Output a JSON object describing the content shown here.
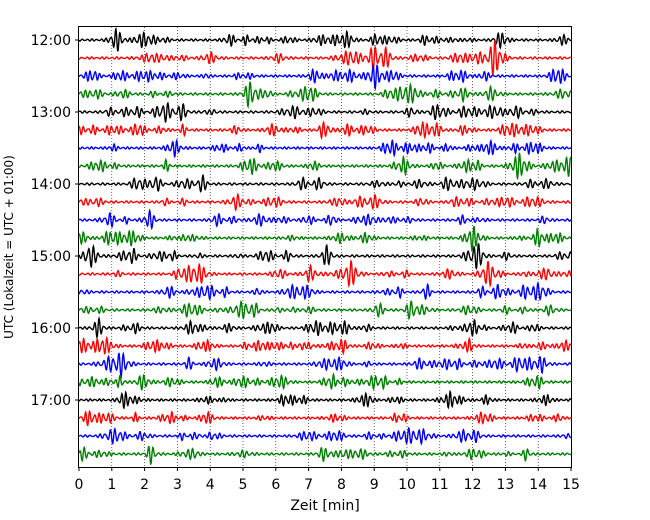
{
  "chart_data": {
    "type": "line",
    "title": "",
    "xlabel": "Zeit  [min]",
    "ylabel": "UTC (Lokalzeit = UTC + 01:00)",
    "xlim": [
      0,
      15
    ],
    "x_ticks": [
      "0",
      "1",
      "2",
      "3",
      "4",
      "5",
      "6",
      "7",
      "8",
      "9",
      "10",
      "11",
      "12",
      "13",
      "14",
      "15"
    ],
    "y_ticks": [
      "12:00",
      "13:00",
      "14:00",
      "15:00",
      "16:00",
      "17:00"
    ],
    "grid": "vertical dotted",
    "trace_interval_minutes": 15,
    "trace_start": "12:00",
    "trace_count": 24,
    "trace_colors": [
      "#000000",
      "#ff0000",
      "#0000ff",
      "#007f00"
    ]
  }
}
